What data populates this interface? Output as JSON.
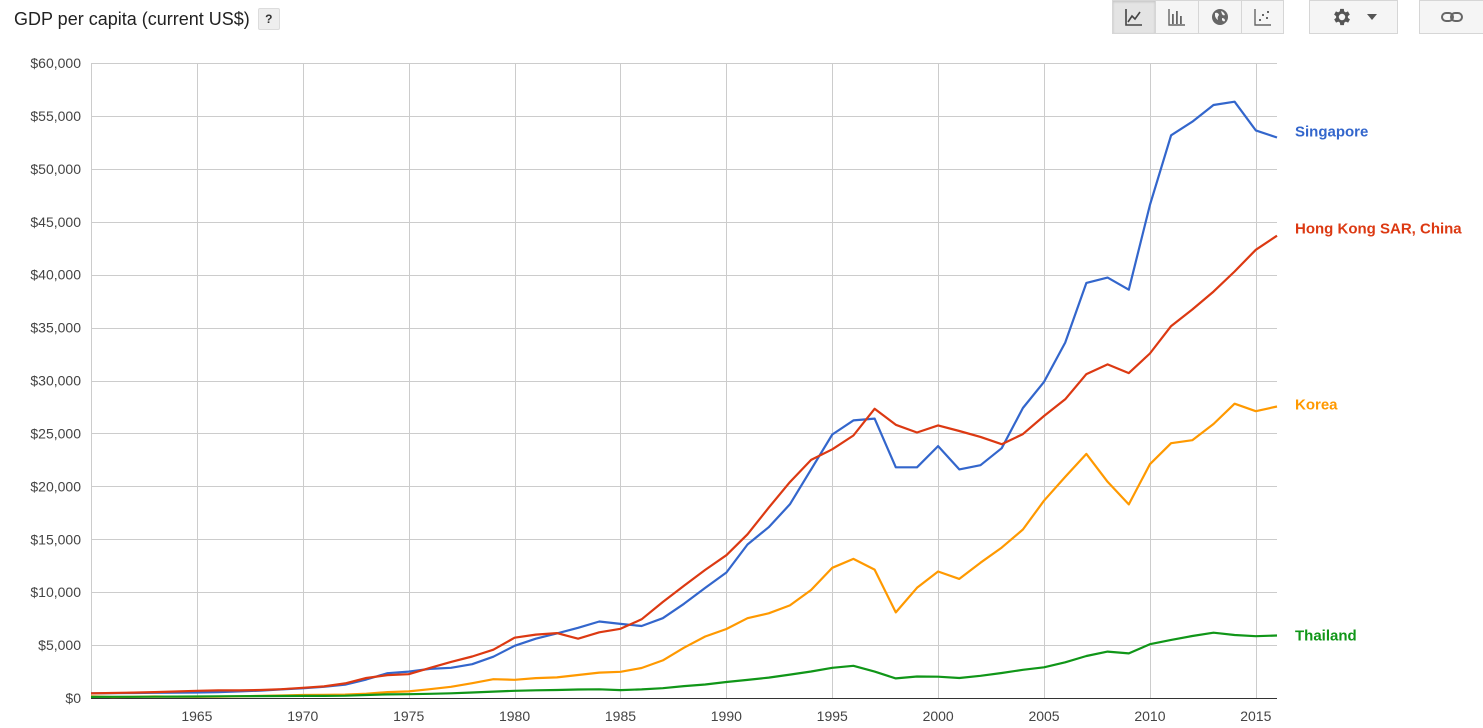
{
  "header": {
    "title": "GDP per capita (current US$)",
    "help_label": "?"
  },
  "toolbar": {
    "buttons": [
      {
        "icon": "line-chart-icon",
        "active": true
      },
      {
        "icon": "bar-chart-icon",
        "active": false
      },
      {
        "icon": "globe-icon",
        "active": false
      },
      {
        "icon": "scatter-chart-icon",
        "active": false
      }
    ],
    "settings_icon": "gear-icon",
    "settings_dropdown_icon": "caret-down-icon",
    "link_icon": "link-icon"
  },
  "chart_data": {
    "type": "line",
    "title": "GDP per capita (current US$)",
    "xlabel": "",
    "ylabel": "",
    "xlim": [
      1960,
      2016
    ],
    "ylim": [
      0,
      60000
    ],
    "x_ticks": [
      1965,
      1970,
      1975,
      1980,
      1985,
      1990,
      1995,
      2000,
      2005,
      2010,
      2015
    ],
    "y_ticks": [
      0,
      5000,
      10000,
      15000,
      20000,
      25000,
      30000,
      35000,
      40000,
      45000,
      50000,
      55000,
      60000
    ],
    "y_tick_labels": [
      "$0",
      "$5,000",
      "$10,000",
      "$15,000",
      "$20,000",
      "$25,000",
      "$30,000",
      "$35,000",
      "$40,000",
      "$45,000",
      "$50,000",
      "$55,000",
      "$60,000"
    ],
    "grid": true,
    "legend": "right (labels at line ends)",
    "x": [
      1960,
      1961,
      1962,
      1963,
      1964,
      1965,
      1966,
      1967,
      1968,
      1969,
      1970,
      1971,
      1972,
      1973,
      1974,
      1975,
      1976,
      1977,
      1978,
      1979,
      1980,
      1981,
      1982,
      1983,
      1984,
      1985,
      1986,
      1987,
      1988,
      1989,
      1990,
      1991,
      1992,
      1993,
      1994,
      1995,
      1996,
      1997,
      1998,
      1999,
      2000,
      2001,
      2002,
      2003,
      2004,
      2005,
      2006,
      2007,
      2008,
      2009,
      2010,
      2011,
      2012,
      2013,
      2014,
      2015,
      2016
    ],
    "series": [
      {
        "name": "Singapore",
        "color": "#3366cc",
        "values": [
          430,
          450,
          470,
          490,
          500,
          520,
          560,
          620,
          700,
          810,
          920,
          1060,
          1260,
          1750,
          2340,
          2490,
          2750,
          2850,
          3190,
          3900,
          4930,
          5600,
          6100,
          6630,
          7230,
          7000,
          6800,
          7540,
          8900,
          10400,
          11860,
          14500,
          16140,
          18300,
          21600,
          24900,
          26230,
          26400,
          21800,
          21800,
          23800,
          21600,
          22000,
          23600,
          27400,
          29870,
          33580,
          39220,
          39720,
          38580,
          46570,
          53170,
          54450,
          56030,
          56340,
          53630,
          52960
        ]
      },
      {
        "name": "Hong Kong SAR, China",
        "color": "#dc3912",
        "values": [
          430,
          470,
          510,
          560,
          610,
          680,
          720,
          720,
          760,
          830,
          960,
          1100,
          1380,
          1890,
          2160,
          2250,
          2840,
          3410,
          3920,
          4560,
          5700,
          5990,
          6130,
          5600,
          6210,
          6540,
          7440,
          9070,
          10600,
          12100,
          13490,
          15470,
          17980,
          20400,
          22500,
          23500,
          24800,
          27330,
          25810,
          25090,
          25760,
          25230,
          24670,
          23980,
          24940,
          26650,
          28220,
          30600,
          31520,
          30700,
          32550,
          35140,
          36710,
          38400,
          40300,
          42350,
          43680
        ]
      },
      {
        "name": "Korea",
        "color": "#ff9900",
        "values": [
          160,
          90,
          110,
          140,
          120,
          110,
          130,
          160,
          200,
          240,
          280,
          300,
          320,
          410,
          560,
          620,
          830,
          1060,
          1400,
          1780,
          1720,
          1880,
          1950,
          2170,
          2400,
          2480,
          2830,
          3550,
          4750,
          5810,
          6520,
          7540,
          8000,
          8750,
          10200,
          12300,
          13140,
          12130,
          8090,
          10410,
          11950,
          11250,
          12780,
          14210,
          15920,
          18640,
          20890,
          23060,
          20430,
          18290,
          22090,
          24080,
          24360,
          25890,
          27810,
          27100,
          27540
        ]
      },
      {
        "name": "Thailand",
        "color": "#109618",
        "values": [
          100,
          110,
          110,
          120,
          130,
          140,
          160,
          170,
          180,
          190,
          200,
          200,
          220,
          280,
          340,
          360,
          400,
          440,
          520,
          600,
          680,
          730,
          760,
          800,
          820,
          750,
          810,
          930,
          1120,
          1280,
          1510,
          1710,
          1930,
          2210,
          2500,
          2850,
          3040,
          2490,
          1850,
          2030,
          2010,
          1890,
          2100,
          2360,
          2660,
          2900,
          3370,
          3970,
          4380,
          4210,
          5080,
          5490,
          5860,
          6170,
          5950,
          5840,
          5910
        ]
      }
    ]
  }
}
